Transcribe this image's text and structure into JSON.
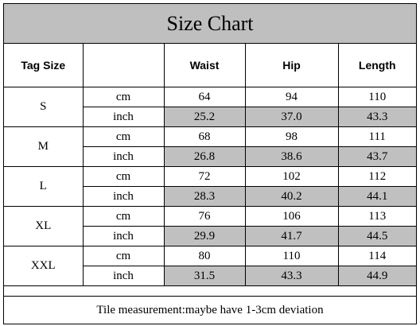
{
  "title": "Size Chart",
  "headers": {
    "tag_size": "Tag Size",
    "unit": "",
    "waist": "Waist",
    "hip": "Hip",
    "length": "Length"
  },
  "units": {
    "cm": "cm",
    "inch": "inch"
  },
  "rows": [
    {
      "size": "S",
      "cm": [
        "64",
        "94",
        "110"
      ],
      "inch": [
        "25.2",
        "37.0",
        "43.3"
      ]
    },
    {
      "size": "M",
      "cm": [
        "68",
        "98",
        "111"
      ],
      "inch": [
        "26.8",
        "38.6",
        "43.7"
      ]
    },
    {
      "size": "L",
      "cm": [
        "72",
        "102",
        "112"
      ],
      "inch": [
        "28.3",
        "40.2",
        "44.1"
      ]
    },
    {
      "size": "XL",
      "cm": [
        "76",
        "106",
        "113"
      ],
      "inch": [
        "29.9",
        "41.7",
        "44.5"
      ]
    },
    {
      "size": "XXL",
      "cm": [
        "80",
        "110",
        "114"
      ],
      "inch": [
        "31.5",
        "43.3",
        "44.9"
      ]
    }
  ],
  "footer": "Tile measurement:maybe have 1-3cm deviation",
  "colors": {
    "title_bg": "#bfbfbf",
    "inch_cell_bg": "#c0c0c0"
  }
}
